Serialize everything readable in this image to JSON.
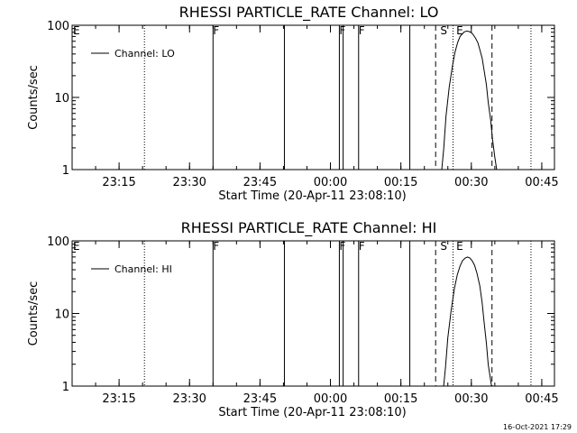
{
  "chart_data": [
    {
      "type": "line",
      "title": "RHESSI PARTICLE_RATE Channel: LO",
      "xlabel": "Start Time (20-Apr-11 23:08:10)",
      "ylabel": "Counts/sec",
      "yscale": "log",
      "ylim": [
        1,
        100
      ],
      "y_ticks": [
        1,
        10,
        100
      ],
      "y_tick_labels": [
        "1",
        "10",
        "100"
      ],
      "xlim_minutes": [
        -3.2,
        99.5
      ],
      "x_ticks": [
        "23:15",
        "23:30",
        "23:45",
        "00:00",
        "00:15",
        "00:30",
        "00:45"
      ],
      "x_tick_minutes": [
        6.8,
        21.8,
        36.8,
        51.8,
        66.8,
        81.8,
        96.8
      ],
      "legend": {
        "label": "Channel: LO",
        "position": "top-left"
      },
      "series": [
        {
          "name": "Channel: LO",
          "x_minutes": [
            75.5,
            75.9,
            76.4,
            77.1,
            77.8,
            78.3,
            78.9,
            79.4,
            79.9,
            80.3,
            80.8,
            81.3,
            81.8,
            82.2,
            82.7,
            83.2,
            83.6,
            84.1,
            84.5,
            85.0,
            85.4,
            85.9,
            86.3,
            86.8,
            87.2
          ],
          "values": [
            1,
            1.9,
            5.5,
            14,
            28,
            42,
            58,
            70,
            76,
            81,
            83,
            82,
            79,
            74,
            66,
            57,
            46,
            35,
            24,
            15,
            8.6,
            4.9,
            2.7,
            1.5,
            1
          ]
        }
      ],
      "event_lines": [
        {
          "minute": 12.2,
          "style": "dotted"
        },
        {
          "minute": 26.8,
          "style": "solid"
        },
        {
          "minute": 42.0,
          "style": "solid"
        },
        {
          "minute": 53.7,
          "style": "solid"
        },
        {
          "minute": 54.5,
          "style": "solid"
        },
        {
          "minute": 57.8,
          "style": "solid"
        },
        {
          "minute": 68.7,
          "style": "solid"
        },
        {
          "minute": 74.2,
          "style": "dashed"
        },
        {
          "minute": 77.9,
          "style": "dotted"
        },
        {
          "minute": 86.2,
          "style": "dashed"
        },
        {
          "minute": 94.5,
          "style": "dotted"
        }
      ],
      "flags": [
        {
          "label": "E",
          "minute": -3.0
        },
        {
          "label": "F",
          "minute": 26.8
        },
        {
          "label": "F",
          "minute": 53.7
        },
        {
          "label": "F",
          "minute": 57.8
        },
        {
          "label": "S",
          "minute": 75.2
        },
        {
          "label": "E",
          "minute": 78.6
        }
      ]
    },
    {
      "type": "line",
      "title": "RHESSI PARTICLE_RATE Channel: HI",
      "xlabel": "Start Time (20-Apr-11 23:08:10)",
      "ylabel": "Counts/sec",
      "yscale": "log",
      "ylim": [
        1,
        100
      ],
      "y_ticks": [
        1,
        10,
        100
      ],
      "y_tick_labels": [
        "1",
        "10",
        "100"
      ],
      "xlim_minutes": [
        -3.2,
        99.5
      ],
      "x_ticks": [
        "23:15",
        "23:30",
        "23:45",
        "00:00",
        "00:15",
        "00:30",
        "00:45"
      ],
      "x_tick_minutes": [
        6.8,
        21.8,
        36.8,
        51.8,
        66.8,
        81.8,
        96.8
      ],
      "legend": {
        "label": "Channel: HI",
        "position": "top-left"
      },
      "series": [
        {
          "name": "Channel: HI",
          "x_minutes": [
            75.9,
            76.3,
            76.8,
            77.5,
            78.2,
            78.8,
            79.4,
            79.9,
            80.5,
            81.0,
            81.5,
            82.0,
            82.5,
            83.0,
            83.6,
            84.1,
            84.5,
            85.0,
            85.4,
            85.9,
            86.1
          ],
          "values": [
            1,
            1.8,
            4.6,
            11,
            22,
            34,
            45,
            53,
            58,
            60,
            58,
            53,
            46,
            36,
            24,
            14,
            7.7,
            3.9,
            2.0,
            1.2,
            1
          ]
        }
      ],
      "event_lines": [
        {
          "minute": 12.2,
          "style": "dotted"
        },
        {
          "minute": 26.8,
          "style": "solid"
        },
        {
          "minute": 42.0,
          "style": "solid"
        },
        {
          "minute": 53.7,
          "style": "solid"
        },
        {
          "minute": 54.5,
          "style": "solid"
        },
        {
          "minute": 57.8,
          "style": "solid"
        },
        {
          "minute": 68.7,
          "style": "solid"
        },
        {
          "minute": 74.2,
          "style": "dashed"
        },
        {
          "minute": 77.9,
          "style": "dotted"
        },
        {
          "minute": 86.2,
          "style": "dashed"
        },
        {
          "minute": 94.5,
          "style": "dotted"
        }
      ],
      "flags": [
        {
          "label": "E",
          "minute": -3.0
        },
        {
          "label": "F",
          "minute": 26.8
        },
        {
          "label": "F",
          "minute": 53.7
        },
        {
          "label": "F",
          "minute": 57.8
        },
        {
          "label": "S",
          "minute": 75.2
        },
        {
          "label": "E",
          "minute": 78.6
        }
      ]
    }
  ],
  "footer": {
    "timestamp": "16-Oct-2021 17:29"
  }
}
